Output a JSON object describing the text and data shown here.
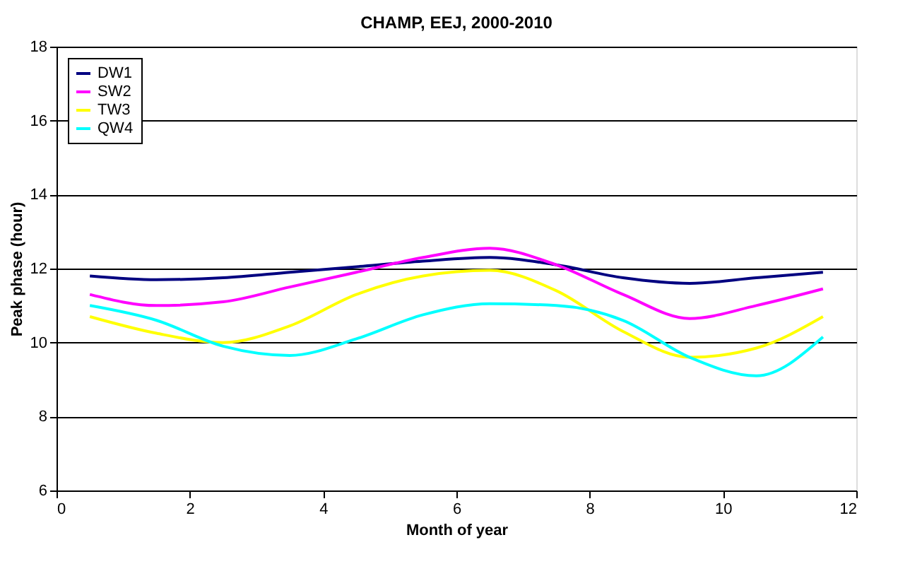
{
  "chart_data": {
    "type": "line",
    "title": "CHAMP, EEJ, 2000-2010",
    "xlabel": "Month of year",
    "ylabel": "Peak phase (hour)",
    "x": [
      0.5,
      1.5,
      2.5,
      3.5,
      4.5,
      5.5,
      6.5,
      7.5,
      8.5,
      9.5,
      10.5,
      11.5
    ],
    "series": [
      {
        "name": "DW1",
        "color": "#000080",
        "values": [
          11.8,
          11.7,
          11.75,
          11.9,
          12.05,
          12.2,
          12.3,
          12.1,
          11.75,
          11.6,
          11.75,
          11.9
        ]
      },
      {
        "name": "SW2",
        "color": "#ff00ff",
        "values": [
          11.3,
          11.0,
          11.1,
          11.5,
          11.9,
          12.3,
          12.55,
          12.1,
          11.3,
          10.65,
          11.0,
          11.45
        ]
      },
      {
        "name": "TW3",
        "color": "#ffff00",
        "values": [
          10.7,
          10.25,
          10.0,
          10.45,
          11.3,
          11.8,
          11.95,
          11.4,
          10.3,
          9.6,
          9.85,
          10.7
        ]
      },
      {
        "name": "QW4",
        "color": "#00ffff",
        "values": [
          11.0,
          10.6,
          9.9,
          9.65,
          10.1,
          10.75,
          11.05,
          11.0,
          10.6,
          9.6,
          9.1,
          10.15
        ]
      }
    ],
    "xlim": [
      0,
      12
    ],
    "xticks": [
      0,
      2,
      4,
      6,
      8,
      10,
      12
    ],
    "ylim": [
      6,
      18
    ],
    "yticks": [
      6,
      8,
      10,
      12,
      14,
      16,
      18
    ],
    "grid": "y",
    "legend": "top left",
    "marker": "none",
    "line_style": "solid"
  }
}
